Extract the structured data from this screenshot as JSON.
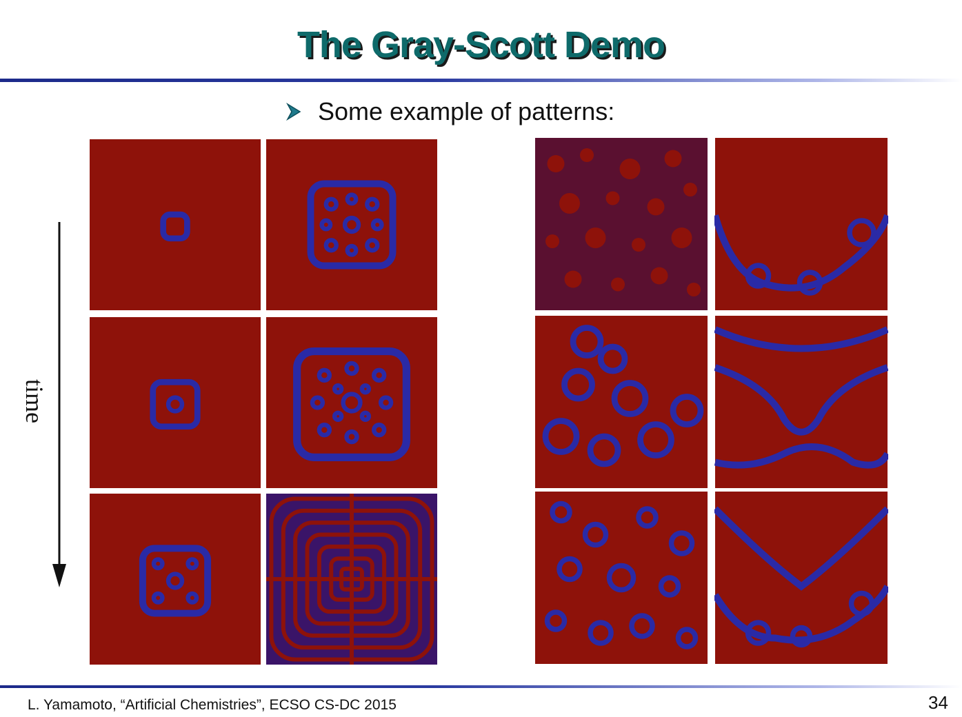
{
  "slide": {
    "title": "The Gray-Scott Demo",
    "bullet": "Some example of patterns:",
    "time_label": "time",
    "footer": "L. Yamamoto, “Artificial Chemistries”, ECSO CS-DC 2015",
    "page_number": "34"
  },
  "colors": {
    "title": "#0e6a6a",
    "rule": "#1c2a8a",
    "pattern_background": "#8e120a",
    "pattern_spots": "#2a2aa6",
    "bullet_arrow": "#1f7a8c"
  }
}
